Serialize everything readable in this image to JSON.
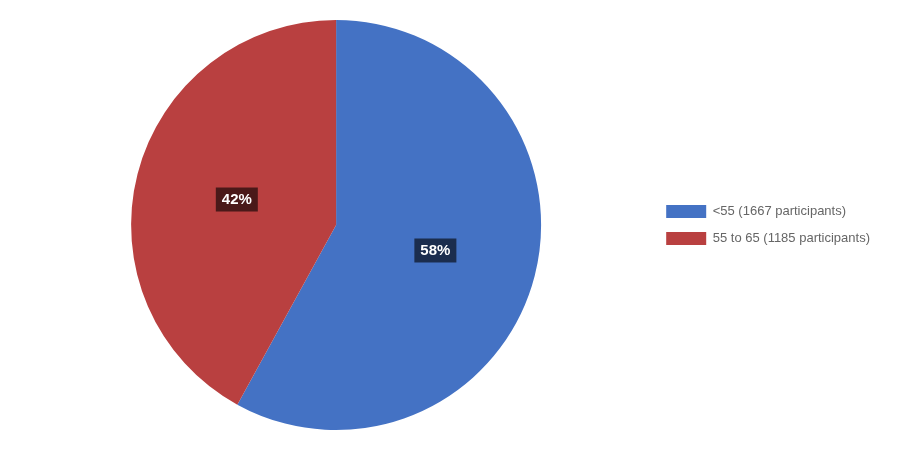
{
  "chart_data": {
    "type": "pie",
    "categories": [
      "<55 (1667 participants)",
      "55 to 65 (1185 participants)"
    ],
    "values": [
      58,
      42
    ],
    "value_labels": [
      "58%",
      "42%"
    ],
    "colors": [
      "#4472C4",
      "#B94040"
    ],
    "data_labels": true,
    "legend": "right"
  }
}
